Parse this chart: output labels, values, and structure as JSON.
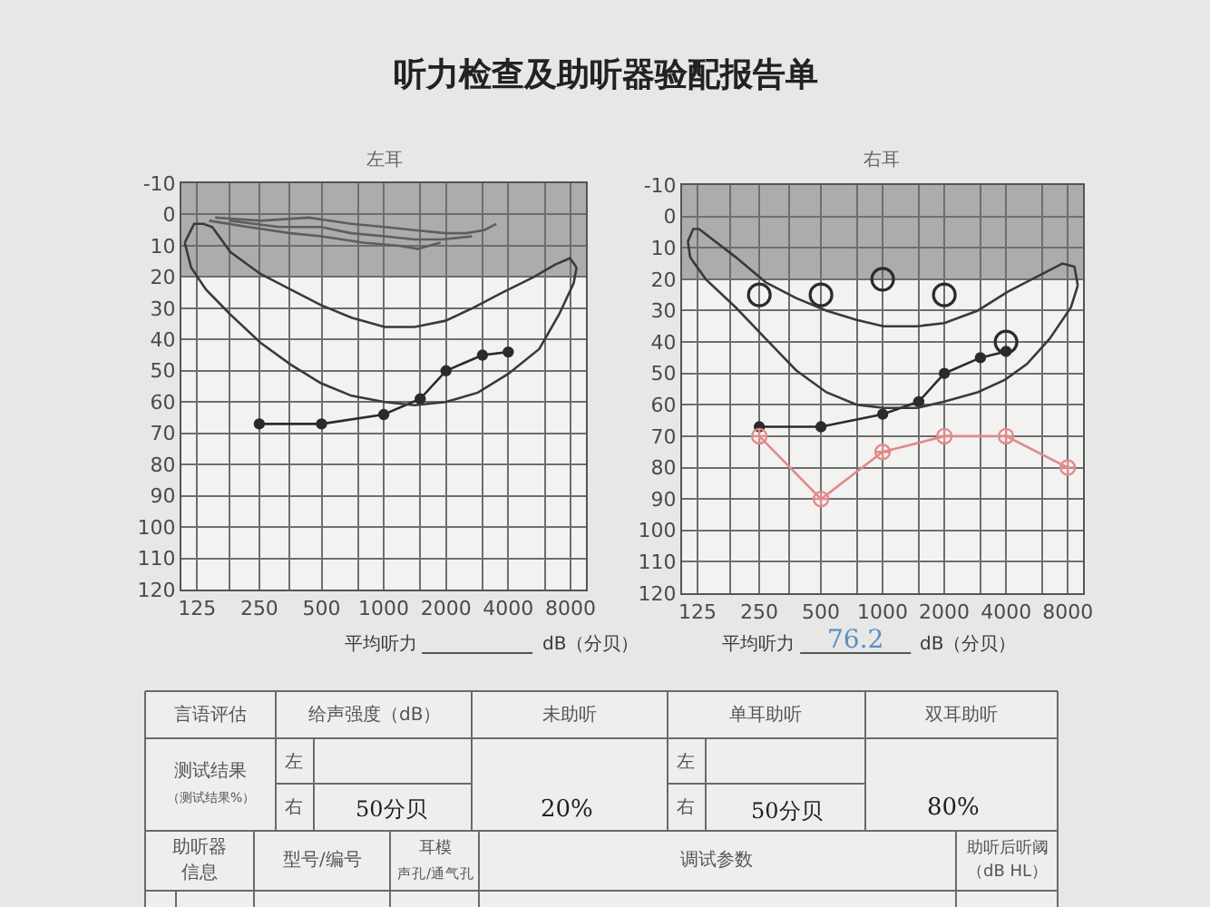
{
  "chart_data": [
    {
      "type": "other",
      "title": "听力检查及助听器验配报告单"
    },
    {
      "type": "line",
      "title": "左耳",
      "log": "x",
      "xlim": [
        105,
        9500
      ],
      "ylim": [
        120,
        -10
      ],
      "xticks": [
        125,
        {
          "value": 180,
          "label": null
        },
        250,
        {
          "value": 350,
          "label": null
        },
        500,
        {
          "value": 750,
          "label": null
        },
        1000,
        {
          "value": 1500,
          "label": null
        },
        2000,
        {
          "value": 3000,
          "label": null
        },
        4000,
        {
          "value": 6000,
          "label": null
        },
        8000
      ],
      "yticks": [
        -10,
        0,
        10,
        20,
        30,
        40,
        50,
        60,
        70,
        80,
        90,
        100,
        110,
        120
      ],
      "grid": true,
      "marker": "circle",
      "bands": [
        {
          "axis": "y",
          "from": -10,
          "to": 20,
          "color": "#acacac"
        }
      ],
      "series": [
        {
          "color": "#2b2b2b",
          "x": [
            250,
            500,
            1000,
            1500,
            2000,
            3000,
            4000
          ],
          "values": [
            67,
            67,
            64,
            59,
            50,
            45,
            44
          ]
        },
        {
          "color": "#3a3a3a",
          "marker": "none",
          "x": [
            109,
            121,
            134,
            148,
            181,
            253,
            354,
            497,
            698,
            1010,
            1410,
            1990,
            2680,
            3740,
            5320,
            6750,
            7950,
            8560
          ],
          "values": [
            9,
            3,
            3,
            4,
            12,
            19,
            24,
            29,
            33,
            36,
            36,
            34,
            30,
            25,
            20,
            16,
            14,
            17
          ]
        },
        {
          "color": "#3a3a3a",
          "marker": "none",
          "x": [
            109,
            117,
            138,
            181,
            253,
            354,
            497,
            698,
            1010,
            1410,
            1990,
            2850,
            4000,
            5650,
            7040,
            8280,
            8560
          ],
          "values": [
            9,
            17,
            24,
            32,
            41,
            48,
            54,
            58,
            60,
            61,
            60,
            57,
            51,
            43,
            32,
            22,
            17
          ]
        },
        {
          "color": "#5e5e5e",
          "marker": "none",
          "x": [
            153,
            253,
            434,
            695,
            1010,
            1410,
            1990,
            2500,
            3060,
            3500
          ],
          "values": [
            1,
            2,
            1,
            3,
            4,
            5,
            6,
            6,
            5,
            3
          ]
        },
        {
          "color": "#5e5e5e",
          "marker": "none",
          "x": [
            181,
            310,
            497,
            695,
            1010,
            1410,
            1910,
            2670
          ],
          "values": [
            2,
            4,
            4,
            6,
            7,
            8,
            8,
            7
          ]
        },
        {
          "color": "#5e5e5e",
          "marker": "none",
          "x": [
            143,
            221,
            354,
            497,
            795,
            1190,
            1460,
            1880
          ],
          "values": [
            2,
            4,
            6,
            7,
            9,
            10,
            11,
            9
          ]
        }
      ],
      "annotations": [
        "平均听力",
        "dB（分贝）"
      ]
    },
    {
      "type": "line",
      "title": "右耳",
      "log": "x",
      "xlim": [
        105,
        9500
      ],
      "ylim": [
        120,
        -10
      ],
      "xticks": [
        125,
        {
          "value": 180,
          "label": null
        },
        250,
        {
          "value": 350,
          "label": null
        },
        500,
        {
          "value": 750,
          "label": null
        },
        1000,
        {
          "value": 1500,
          "label": null
        },
        2000,
        {
          "value": 3000,
          "label": null
        },
        4000,
        {
          "value": 6000,
          "label": null
        },
        8000
      ],
      "yticks": [
        -10,
        0,
        10,
        20,
        30,
        40,
        50,
        60,
        70,
        80,
        90,
        100,
        110,
        120
      ],
      "grid": true,
      "marker": "circle",
      "bands": [
        {
          "axis": "y",
          "from": -10,
          "to": 20,
          "color": "#acacac"
        }
      ],
      "series": [
        {
          "color": "#2b2b2b",
          "x": [
            250,
            500,
            1000,
            1500,
            2000,
            3000,
            4000
          ],
          "values": [
            67,
            67,
            63,
            59,
            50,
            45,
            43
          ]
        },
        {
          "color": "#e08a8a",
          "marker": "cross",
          "x": [
            250,
            500,
            1000,
            2000,
            4000,
            8000
          ],
          "values": [
            70,
            90,
            75,
            70,
            70,
            80
          ]
        },
        {
          "type": "scatter",
          "color": "#2b2b2b",
          "marker": "circle",
          "x": [
            250,
            500,
            1000,
            2000,
            4000
          ],
          "values": [
            25,
            25,
            20,
            25,
            40
          ]
        },
        {
          "color": "#3a3a3a",
          "marker": "none",
          "x": [
            112,
            119,
            127,
            192,
            269,
            378,
            531,
            747,
            1010,
            1470,
            2000,
            2910,
            4080,
            5740,
            7530,
            8630,
            8960
          ],
          "values": [
            8,
            4,
            4,
            13,
            21,
            26,
            30,
            33,
            35,
            35,
            34,
            30,
            24,
            19,
            15,
            16,
            22
          ]
        },
        {
          "color": "#3a3a3a",
          "marker": "none",
          "x": [
            112,
            115,
            137,
            192,
            269,
            378,
            531,
            747,
            1010,
            1470,
            2000,
            2910,
            3960,
            5060,
            6520,
            8290,
            8960
          ],
          "values": [
            8,
            13,
            20,
            29,
            39,
            49,
            56,
            60,
            61,
            61,
            59,
            56,
            52,
            47,
            39,
            29,
            22
          ]
        }
      ],
      "annotations": [
        "平均听力",
        "76.2",
        "dB（分贝）"
      ]
    },
    {
      "type": "other",
      "annotations": [
        "言语评估",
        "给声强度（dB）",
        "未助听",
        "单耳助听",
        "双耳助听",
        "测试结果",
        "（测试结果%）",
        "左",
        "右",
        "50分贝",
        "20%",
        "左",
        "右",
        "50分贝",
        "80%",
        "助听器",
        "信息",
        "型号/编号",
        "耳模",
        "声孔/通气孔",
        "调试参数",
        "助听后听阈",
        "（dB HL）"
      ]
    }
  ]
}
